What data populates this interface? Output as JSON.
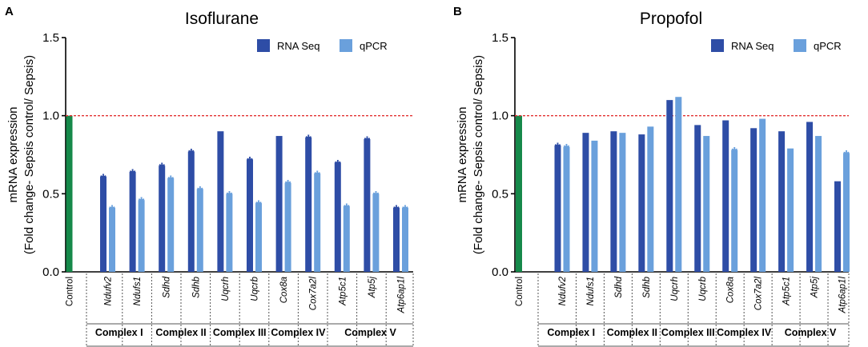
{
  "colors": {
    "rna_seq": "#2e4da6",
    "qpcr": "#6aa0dc",
    "control": "#16894a",
    "reference": "#e33333"
  },
  "chart_data": [
    {
      "type": "bar",
      "panel": "A",
      "title": "Isoflurane",
      "ylabel_line1": "mRNA expression",
      "ylabel_line2": "(Fold change- Sepsis control/ Sepsis)",
      "ylim": [
        0.0,
        1.5
      ],
      "yticks": [
        "0.0",
        "0.5",
        "1.0",
        "1.5"
      ],
      "reference_line": 1.0,
      "control": {
        "label": "Control",
        "value": 1.0
      },
      "categories": [
        "Ndufv2",
        "Ndufs1",
        "Sdhd",
        "Sdhb",
        "Uqcrh",
        "Uqcrb",
        "Cox8a",
        "Cox7a2l",
        "Atp5c1",
        "Atp5j",
        "Atp6ap1l"
      ],
      "series": [
        {
          "name": "RNA Seq",
          "values": [
            0.61,
            0.64,
            0.68,
            0.77,
            0.9,
            0.72,
            0.87,
            0.86,
            0.7,
            0.85,
            0.41
          ],
          "significant": [
            true,
            true,
            true,
            true,
            false,
            true,
            false,
            true,
            true,
            true,
            true
          ]
        },
        {
          "name": "qPCR",
          "values": [
            0.41,
            0.46,
            0.6,
            0.53,
            0.5,
            0.44,
            0.57,
            0.63,
            0.42,
            0.5,
            0.41
          ],
          "significant": [
            true,
            true,
            true,
            true,
            true,
            true,
            true,
            true,
            true,
            true,
            true
          ]
        }
      ],
      "groups": [
        {
          "label": "Complex I",
          "span": [
            0,
            1
          ]
        },
        {
          "label": "Complex II",
          "span": [
            2,
            3
          ]
        },
        {
          "label": "Complex III",
          "span": [
            4,
            5
          ]
        },
        {
          "label": "Complex IV",
          "span": [
            6,
            7
          ]
        },
        {
          "label": "Complex V",
          "span": [
            8,
            10
          ]
        }
      ],
      "legend": [
        "RNA Seq",
        "qPCR"
      ],
      "legend_position": "top-right"
    },
    {
      "type": "bar",
      "panel": "B",
      "title": "Propofol",
      "ylabel_line1": "mRNA expression",
      "ylabel_line2": "(Fold change- Sepsis control/ Sepsis)",
      "ylim": [
        0.0,
        1.5
      ],
      "yticks": [
        "0.0",
        "0.5",
        "1.0",
        "1.5"
      ],
      "reference_line": 1.0,
      "control": {
        "label": "Control",
        "value": 1.0
      },
      "categories": [
        "Ndufv2",
        "Ndufs1",
        "Sdhd",
        "Sdhb",
        "Uqcrh",
        "Uqcrb",
        "Cox8a",
        "Cox7a2l",
        "Atp5c1",
        "Atp5j",
        "Atp6ap1l"
      ],
      "series": [
        {
          "name": "RNA Seq",
          "values": [
            0.81,
            0.89,
            0.9,
            0.88,
            1.1,
            0.94,
            0.97,
            0.92,
            0.9,
            0.96,
            0.58
          ],
          "significant": [
            true,
            false,
            false,
            false,
            false,
            false,
            false,
            false,
            false,
            false,
            false
          ]
        },
        {
          "name": "qPCR",
          "values": [
            0.8,
            0.84,
            0.89,
            0.93,
            1.12,
            0.87,
            0.78,
            0.98,
            0.79,
            0.87,
            0.76
          ],
          "significant": [
            true,
            false,
            false,
            false,
            false,
            false,
            true,
            false,
            false,
            false,
            true
          ]
        }
      ],
      "groups": [
        {
          "label": "Complex I",
          "span": [
            0,
            1
          ]
        },
        {
          "label": "Complex II",
          "span": [
            2,
            3
          ]
        },
        {
          "label": "Complex III",
          "span": [
            4,
            5
          ]
        },
        {
          "label": "Complex IV",
          "span": [
            6,
            7
          ]
        },
        {
          "label": "Complex V",
          "span": [
            8,
            10
          ]
        }
      ],
      "legend": [
        "RNA Seq",
        "qPCR"
      ],
      "legend_position": "top-right"
    }
  ]
}
